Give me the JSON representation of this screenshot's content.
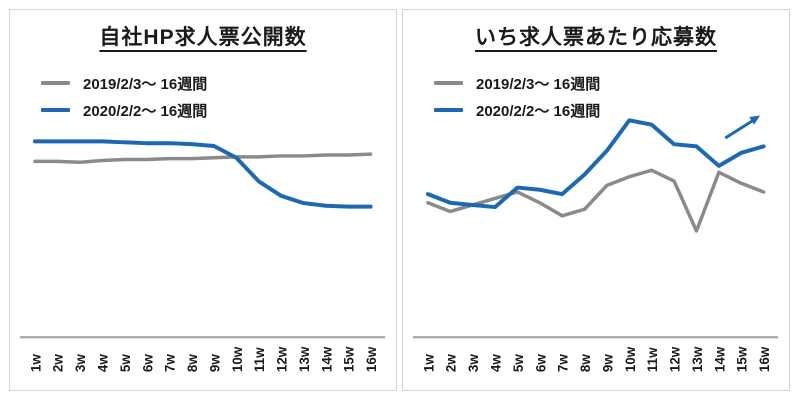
{
  "colors": {
    "blue": "#1c69b2",
    "gray": "#8a8a8a",
    "axis": "#a6a6a6",
    "card_border": "#d4d4d4",
    "text": "#1a1a1a"
  },
  "charts": [
    {
      "title": "自社HP求人票公開数",
      "legend": [
        {
          "label": "2019/2/3〜 16週間",
          "color": "#8a8a8a"
        },
        {
          "label": "2020/2/2〜 16週間",
          "color": "#1c69b2"
        }
      ],
      "arrow_annotation": false,
      "chart_data": {
        "type": "line",
        "title": "自社HP求人票公開数",
        "categories": [
          "1w",
          "2w",
          "3w",
          "4w",
          "5w",
          "6w",
          "7w",
          "8w",
          "9w",
          "10w",
          "11w",
          "12w",
          "13w",
          "14w",
          "15w",
          "16w"
        ],
        "series": [
          {
            "name": "2019/2/3〜 16週間",
            "color": "#8a8a8a",
            "values": [
              97,
              97,
              96.5,
              97.5,
              98,
              98,
              98.5,
              98.5,
              99,
              99.5,
              99.5,
              100,
              100,
              100.5,
              100.5,
              101
            ]
          },
          {
            "name": "2020/2/2〜 16週間",
            "color": "#1c69b2",
            "values": [
              108,
              108,
              108,
              108,
              107.5,
              107,
              107,
              106.5,
              105.5,
              99,
              86,
              78,
              74,
              72.5,
              72,
              72
            ]
          }
        ],
        "xlabel": "",
        "ylabel": "",
        "ylim": [
          0,
          130
        ],
        "y_axis_visible": false,
        "grid": false,
        "legend_position": "top-left",
        "note": "no numeric y-axis shown; values are relative index estimates"
      }
    },
    {
      "title": "いち求人票あたり応募数",
      "legend": [
        {
          "label": "2019/2/3〜 16週間",
          "color": "#8a8a8a"
        },
        {
          "label": "2020/2/2〜 16週間",
          "color": "#1c69b2"
        }
      ],
      "arrow_annotation": true,
      "chart_data": {
        "type": "line",
        "title": "いち求人票あたり応募数",
        "categories": [
          "1w",
          "2w",
          "3w",
          "4w",
          "5w",
          "6w",
          "7w",
          "8w",
          "9w",
          "10w",
          "11w",
          "12w",
          "13w",
          "14w",
          "15w",
          "16w"
        ],
        "series": [
          {
            "name": "2019/2/3〜 16週間",
            "color": "#8a8a8a",
            "values": [
              62,
              58,
              61,
              64,
              67,
              62,
              56,
              59,
              70,
              74,
              77,
              72,
              49,
              76,
              71,
              67
            ]
          },
          {
            "name": "2020/2/2〜 16週間",
            "color": "#1c69b2",
            "values": [
              66,
              62,
              61,
              60,
              69,
              68,
              66,
              75,
              86,
              100,
              98,
              89,
              88,
              79,
              85,
              88
            ]
          }
        ],
        "xlabel": "",
        "ylabel": "",
        "ylim": [
          0,
          105
        ],
        "y_axis_visible": false,
        "grid": false,
        "legend_position": "top-left",
        "annotations": [
          {
            "type": "arrow",
            "direction": "up-right",
            "color": "#1c69b2"
          }
        ],
        "note": "no numeric y-axis shown; values are relative index estimates"
      }
    }
  ]
}
